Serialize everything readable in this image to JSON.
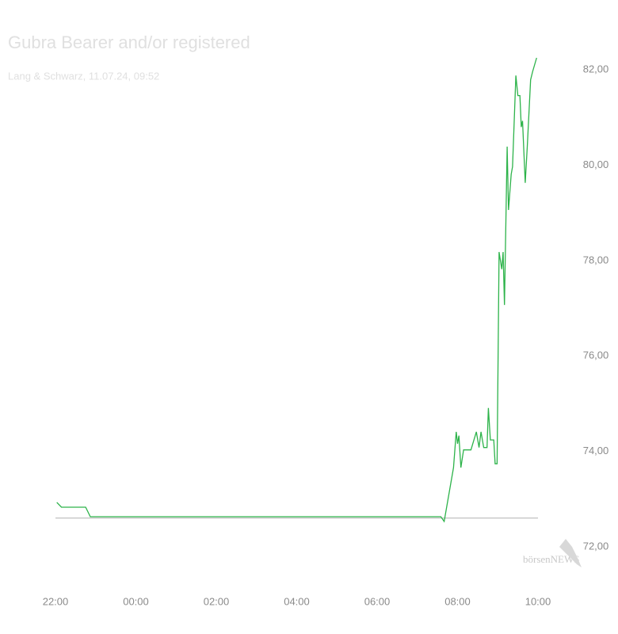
{
  "chart_data": {
    "type": "line",
    "title": "Gubra Bearer and/or registered",
    "subtitle": "Lang & Schwarz, 11.07.24, 09:52",
    "watermark": "börsenNEWS",
    "x": [
      "22:02",
      "22:09",
      "22:45",
      "22:52",
      "07:35",
      "07:40",
      "07:54",
      "07:58",
      "08:00",
      "08:02",
      "08:05",
      "08:09",
      "08:20",
      "08:28",
      "08:32",
      "08:35",
      "08:39",
      "08:44",
      "08:46",
      "08:49",
      "08:54",
      "08:56",
      "08:59",
      "09:02",
      "09:06",
      "09:08",
      "09:10",
      "09:14",
      "09:16",
      "09:20",
      "09:22",
      "09:27",
      "09:30",
      "09:33",
      "09:35",
      "09:37",
      "09:41",
      "09:44",
      "09:49",
      "09:52",
      "09:58"
    ],
    "series": [
      {
        "name": "Gubra Bearer and/or registered",
        "color": "#2db34a",
        "values": [
          72.93,
          72.83,
          72.83,
          72.63,
          72.63,
          72.53,
          73.66,
          74.41,
          74.16,
          74.33,
          73.66,
          74.03,
          74.03,
          74.41,
          74.08,
          74.41,
          74.08,
          74.08,
          74.91,
          74.24,
          74.24,
          73.74,
          73.74,
          78.18,
          77.82,
          78.18,
          77.07,
          80.39,
          79.06,
          79.81,
          79.97,
          81.88,
          81.46,
          81.46,
          80.8,
          80.93,
          79.63,
          80.39,
          81.79,
          81.96,
          82.25
        ]
      }
    ],
    "reference_line": {
      "value": 72.6,
      "color": "#b0b0b0"
    },
    "xlim": [
      "22:00",
      "10:00"
    ],
    "xticks": [
      "22:00",
      "00:00",
      "02:00",
      "04:00",
      "06:00",
      "08:00",
      "10:00"
    ],
    "ylim": [
      71.5,
      82.5
    ],
    "yticks": [
      {
        "value": 72,
        "label": "72,00"
      },
      {
        "value": 74,
        "label": "74,00"
      },
      {
        "value": 76,
        "label": "76,00"
      },
      {
        "value": 78,
        "label": "78,00"
      },
      {
        "value": 80,
        "label": "80,00"
      },
      {
        "value": 82,
        "label": "82,00"
      }
    ]
  }
}
